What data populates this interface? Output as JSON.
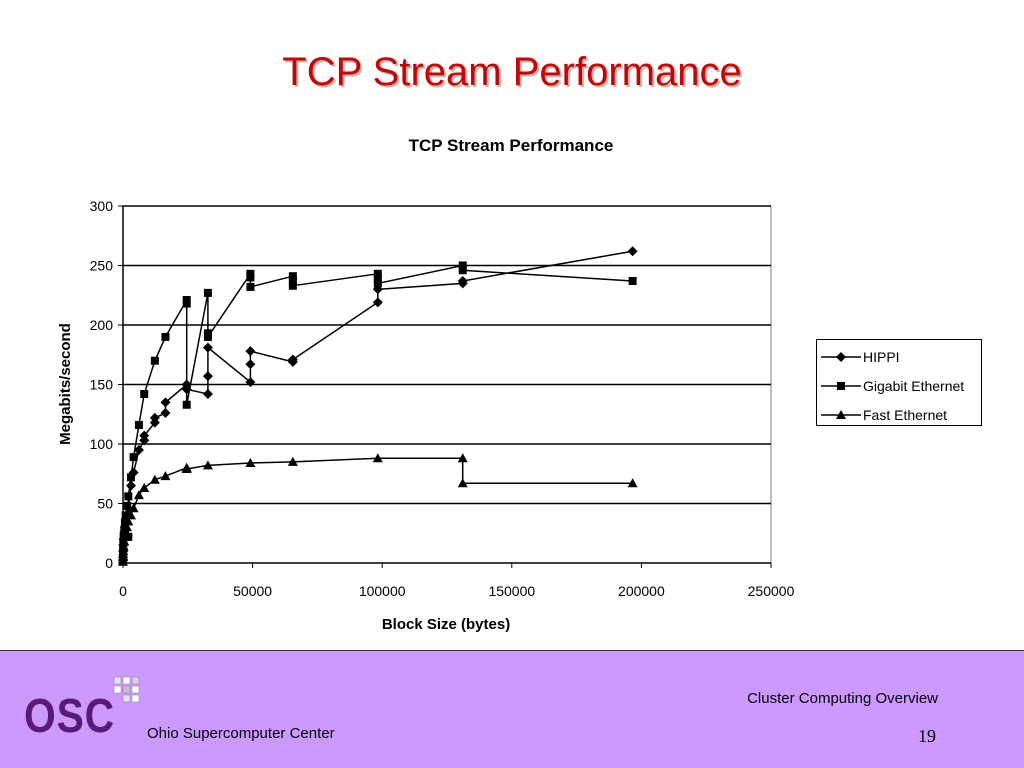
{
  "slide": {
    "title": "TCP Stream Performance"
  },
  "footer": {
    "logo_text": "OSC",
    "organization": "Ohio Supercomputer Center",
    "topic": "Cluster Computing Overview",
    "page_number": "19"
  },
  "colors": {
    "title": "#cc0000",
    "footer_background": "#cc99ff",
    "logo": "#5a1a7a",
    "series": "#000000"
  },
  "chart_data": {
    "type": "line",
    "title": "TCP Stream Performance",
    "xlabel": "Block Size (bytes)",
    "ylabel": "Megabits/second",
    "xlim": [
      0,
      250000
    ],
    "ylim": [
      0,
      300
    ],
    "xticks": [
      0,
      50000,
      100000,
      150000,
      200000,
      250000
    ],
    "yticks": [
      0,
      50,
      100,
      150,
      200,
      250,
      300
    ],
    "grid": "horizontal",
    "legend_position": "right",
    "series": [
      {
        "name": "HIPPI",
        "marker": "diamond",
        "points": [
          [
            1,
            2
          ],
          [
            16,
            5
          ],
          [
            64,
            10
          ],
          [
            128,
            15
          ],
          [
            256,
            20
          ],
          [
            512,
            26
          ],
          [
            768,
            30
          ],
          [
            1024,
            34
          ],
          [
            1536,
            40
          ],
          [
            2048,
            46
          ],
          [
            3072,
            65
          ],
          [
            4096,
            76
          ],
          [
            6144,
            95
          ],
          [
            8192,
            103
          ],
          [
            8192,
            107
          ],
          [
            12288,
            118
          ],
          [
            12288,
            122
          ],
          [
            16384,
            126
          ],
          [
            16384,
            135
          ],
          [
            24576,
            150
          ],
          [
            24576,
            146
          ],
          [
            32768,
            142
          ],
          [
            32768,
            157
          ],
          [
            32768,
            181
          ],
          [
            49152,
            152
          ],
          [
            49152,
            167
          ],
          [
            49152,
            178
          ],
          [
            65536,
            169
          ],
          [
            65536,
            171
          ],
          [
            98304,
            219
          ],
          [
            98304,
            230
          ],
          [
            131072,
            235
          ],
          [
            131072,
            237
          ],
          [
            196608,
            262
          ]
        ]
      },
      {
        "name": "Gigabit Ethernet",
        "marker": "square",
        "points": [
          [
            1,
            2
          ],
          [
            16,
            6
          ],
          [
            64,
            12
          ],
          [
            128,
            18
          ],
          [
            256,
            22
          ],
          [
            512,
            28
          ],
          [
            768,
            34
          ],
          [
            1024,
            40
          ],
          [
            1536,
            48
          ],
          [
            2048,
            22
          ],
          [
            2048,
            56
          ],
          [
            3072,
            72
          ],
          [
            4096,
            89
          ],
          [
            6144,
            116
          ],
          [
            8192,
            142
          ],
          [
            12288,
            170
          ],
          [
            16384,
            190
          ],
          [
            24576,
            221
          ],
          [
            24576,
            218
          ],
          [
            24576,
            133
          ],
          [
            32768,
            227
          ],
          [
            32768,
            193
          ],
          [
            32768,
            190
          ],
          [
            49152,
            243
          ],
          [
            49152,
            240
          ],
          [
            49152,
            232
          ],
          [
            65536,
            241
          ],
          [
            65536,
            237
          ],
          [
            65536,
            233
          ],
          [
            98304,
            243
          ],
          [
            98304,
            239
          ],
          [
            98304,
            235
          ],
          [
            131072,
            250
          ],
          [
            131072,
            246
          ],
          [
            196608,
            237
          ]
        ]
      },
      {
        "name": "Fast Ethernet",
        "marker": "triangle",
        "points": [
          [
            1,
            1
          ],
          [
            16,
            3
          ],
          [
            64,
            6
          ],
          [
            128,
            10
          ],
          [
            256,
            14
          ],
          [
            512,
            18
          ],
          [
            768,
            22
          ],
          [
            1024,
            26
          ],
          [
            1536,
            30
          ],
          [
            2048,
            35
          ],
          [
            3072,
            40
          ],
          [
            4096,
            46
          ],
          [
            6144,
            57
          ],
          [
            8192,
            63
          ],
          [
            12288,
            70
          ],
          [
            16384,
            73
          ],
          [
            24576,
            80
          ],
          [
            24576,
            79
          ],
          [
            32768,
            82
          ],
          [
            49152,
            84
          ],
          [
            65536,
            85
          ],
          [
            98304,
            88
          ],
          [
            131072,
            88
          ],
          [
            131072,
            67
          ],
          [
            196608,
            67
          ]
        ]
      }
    ]
  }
}
